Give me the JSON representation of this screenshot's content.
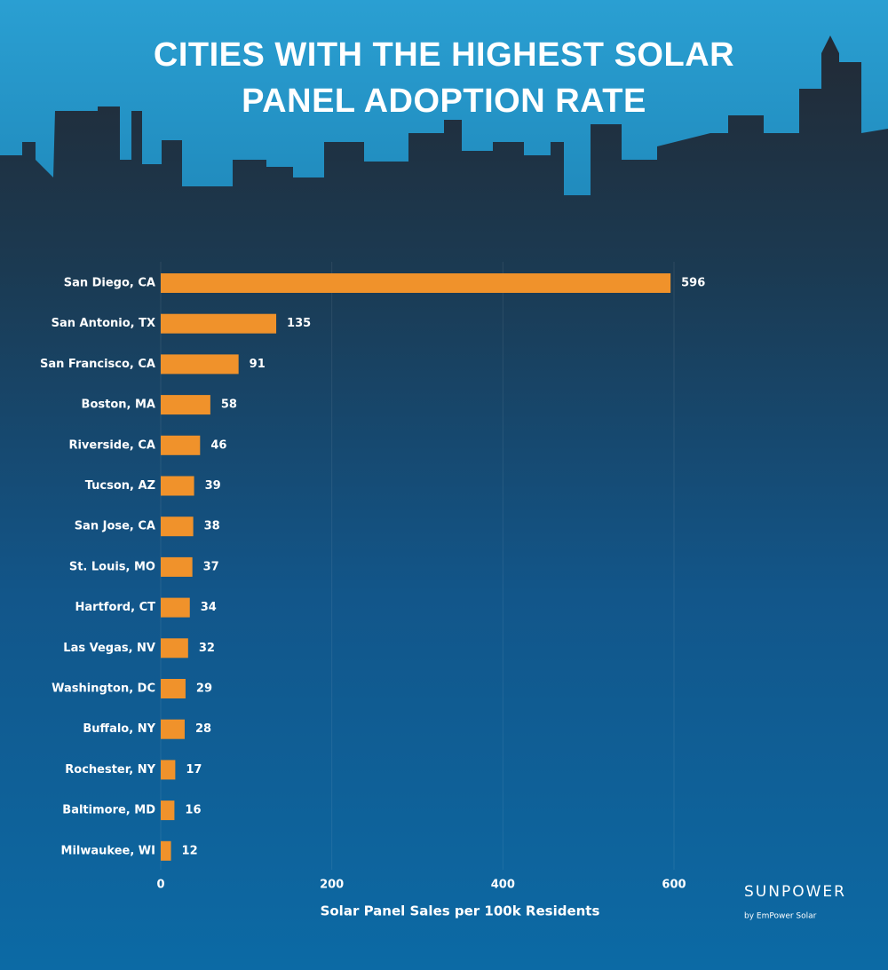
{
  "chart_data": {
    "type": "barh",
    "title": "CITIES WITH THE HIGHEST SOLAR PANEL ADOPTION RATE",
    "categories": [
      "San Diego, CA",
      "San Antonio, TX",
      "San Francisco, CA",
      "Boston, MA",
      "Riverside, CA",
      "Tucson, AZ",
      "San Jose, CA",
      "St. Louis, MO",
      "Hartford, CT",
      "Las Vegas, NV",
      "Washington, DC",
      "Buffalo, NY",
      "Rochester, NY",
      "Baltimore, MD",
      "Milwaukee, WI"
    ],
    "values": [
      596,
      135,
      91,
      58,
      46,
      39,
      38,
      37,
      34,
      32,
      29,
      28,
      17,
      16,
      12
    ],
    "color": "#f0922b",
    "xlim": [
      0,
      600
    ],
    "xticks": [
      0,
      200,
      400,
      600
    ],
    "grid": true,
    "xlabel": "Solar Panel Sales per 100k Residents",
    "logo": "SUNPOWER",
    "logo_sub": "by EmPower Solar"
  }
}
